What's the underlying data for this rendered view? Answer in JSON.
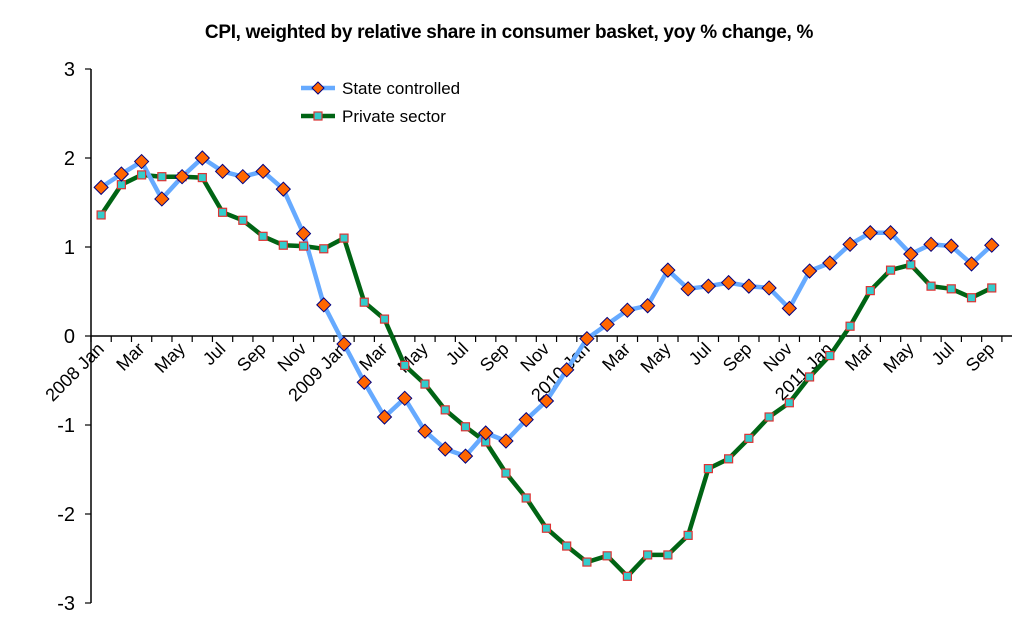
{
  "chart_data": {
    "type": "line",
    "title": "CPI, weighted by relative share in consumer basket, yoy % change, %",
    "xlabel": "",
    "ylabel": "",
    "ylim": [
      -3,
      3
    ],
    "yticks": [
      "3",
      "2",
      "1",
      "0",
      "-1",
      "-2",
      "-3"
    ],
    "ytick_values": [
      3,
      2,
      1,
      0,
      -1,
      -2,
      -3
    ],
    "grid": false,
    "legend_position": "top-left-inside",
    "categories": [
      "2008 Jan",
      "2008 Feb",
      "2008 Mar",
      "2008 Apr",
      "2008 May",
      "2008 Jun",
      "2008 Jul",
      "2008 Aug",
      "2008 Sep",
      "2008 Oct",
      "2008 Nov",
      "2008 Dec",
      "2009 Jan",
      "2009 Feb",
      "2009 Mar",
      "2009 Apr",
      "2009 May",
      "2009 Jun",
      "2009 Jul",
      "2009 Aug",
      "2009 Sep",
      "2009 Oct",
      "2009 Nov",
      "2009 Dec",
      "2010 Jan",
      "2010 Feb",
      "2010 Mar",
      "2010 Apr",
      "2010 May",
      "2010 Jun",
      "2010 Jul",
      "2010 Aug",
      "2010 Sep",
      "2010 Oct",
      "2010 Nov",
      "2010 Dec",
      "2011 Jan",
      "2011 Feb",
      "2011 Mar",
      "2011 Apr",
      "2011 May",
      "2011 Jun",
      "2011 Jul",
      "2011 Aug",
      "2011 Sep"
    ],
    "xtick_labels": [
      "2008 Jan",
      "",
      "Mar",
      "",
      "May",
      "",
      "Jul",
      "",
      "Sep",
      "",
      "Nov",
      "",
      "2009 Jan",
      "",
      "Mar",
      "",
      "May",
      "",
      "Jul",
      "",
      "Sep",
      "",
      "Nov",
      "",
      "2010 Jan",
      "",
      "Mar",
      "",
      "May",
      "",
      "Jul",
      "",
      "Sep",
      "",
      "Nov",
      "",
      "2011 Jan",
      "",
      "Mar",
      "",
      "May",
      "",
      "Jul",
      "",
      "Sep"
    ],
    "series": [
      {
        "name": "State controlled",
        "line_color": "#66aaff",
        "marker": "diamond",
        "marker_fill": "#ff6600",
        "marker_stroke": "#000080",
        "values": [
          1.67,
          1.82,
          1.96,
          1.54,
          1.79,
          2.0,
          1.85,
          1.79,
          1.85,
          1.65,
          1.15,
          0.35,
          -0.09,
          -0.52,
          -0.91,
          -0.7,
          -1.07,
          -1.27,
          -1.35,
          -1.09,
          -1.18,
          -0.94,
          -0.73,
          -0.38,
          -0.03,
          0.13,
          0.29,
          0.34,
          0.74,
          0.53,
          0.56,
          0.6,
          0.56,
          0.54,
          0.31,
          0.73,
          0.82,
          1.03,
          1.16,
          1.16,
          0.92,
          1.03,
          1.01,
          0.81,
          1.02
        ]
      },
      {
        "name": "Private sector",
        "line_color": "#006414",
        "marker": "square",
        "marker_fill": "#33cccc",
        "marker_stroke": "#dd3333",
        "values": [
          1.36,
          1.7,
          1.81,
          1.79,
          1.79,
          1.78,
          1.39,
          1.3,
          1.12,
          1.02,
          1.01,
          0.98,
          1.1,
          0.38,
          0.19,
          -0.33,
          -0.54,
          -0.83,
          -1.02,
          -1.19,
          -1.54,
          -1.82,
          -2.16,
          -2.36,
          -2.54,
          -2.47,
          -2.7,
          -2.46,
          -2.46,
          -2.24,
          -1.49,
          -1.38,
          -1.15,
          -0.91,
          -0.75,
          -0.46,
          -0.22,
          0.11,
          0.51,
          0.74,
          0.8,
          0.56,
          0.53,
          0.43,
          0.54
        ]
      }
    ]
  }
}
